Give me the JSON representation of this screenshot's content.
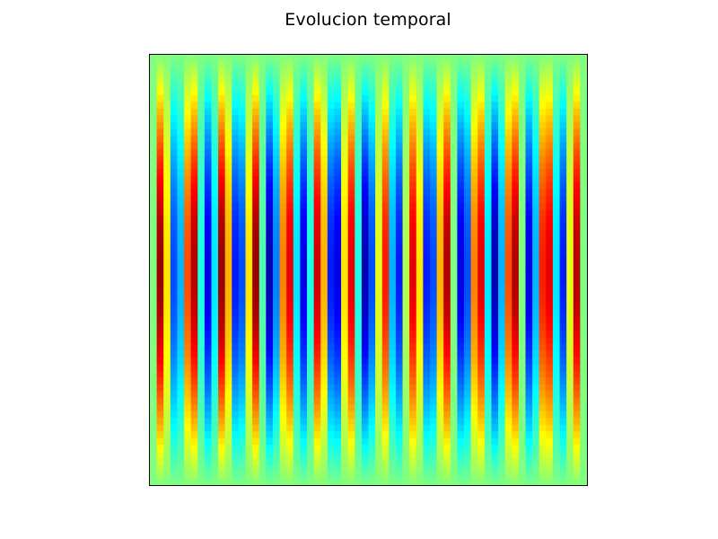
{
  "chart_data": {
    "type": "heatmap",
    "title": "Evolucion temporal",
    "xlabel": "",
    "ylabel": "",
    "x_ticks_shown": false,
    "y_ticks_shown": false,
    "grid": false,
    "legend": "none",
    "colormap": "jet",
    "value_range": [
      -1,
      1
    ],
    "cols": 64,
    "rows": 64,
    "column_peak_values": [
      0.0,
      0.95,
      0.3,
      -0.6,
      -0.4,
      0.6,
      0.9,
      -0.2,
      -0.8,
      -0.3,
      0.95,
      0.4,
      -0.7,
      -0.6,
      0.3,
      0.95,
      -0.1,
      -0.9,
      -0.5,
      0.5,
      0.8,
      -0.3,
      -0.8,
      -0.2,
      0.85,
      0.4,
      -0.7,
      -0.8,
      0.3,
      0.8,
      -0.2,
      -0.9,
      -0.6,
      0.2,
      0.7,
      -0.4,
      -0.7,
      0.1,
      0.8,
      0.3,
      -0.7,
      -0.6,
      0.4,
      0.9,
      0.0,
      -0.8,
      -0.6,
      0.5,
      0.8,
      -0.3,
      -0.9,
      -0.4,
      0.6,
      0.9,
      0.0,
      -0.8,
      -0.4,
      0.7,
      0.8,
      -0.3,
      -0.7,
      0.2,
      0.9,
      0.0
    ],
    "row_envelope": "half-sine, zero at top and bottom rows, maximum at middle row"
  }
}
